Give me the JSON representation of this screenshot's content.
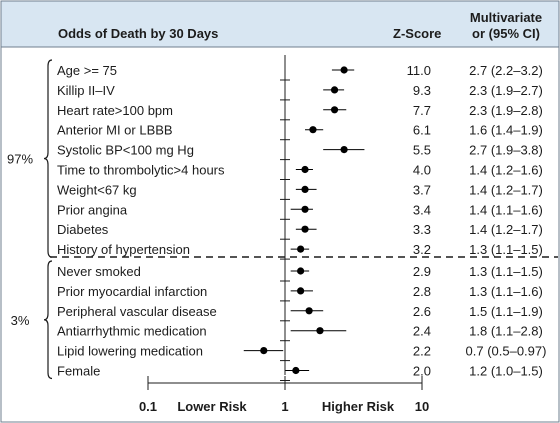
{
  "chart_data": {
    "type": "forest",
    "title": "Odds of Death by 30 Days",
    "zscore_header": "Z-Score",
    "or_header_line1": "Multivariate",
    "or_header_line2": "or (95% CI)",
    "axis": {
      "scale": "log",
      "xlim": [
        0.1,
        10
      ],
      "ticks": [
        "0.1",
        "1",
        "10"
      ],
      "lower_label": "Lower Risk",
      "higher_label": "Higher Risk"
    },
    "groups": [
      {
        "label": "97%",
        "rows": [
          0,
          9
        ]
      },
      {
        "label": "3%",
        "rows": [
          10,
          15
        ]
      }
    ],
    "rows": [
      {
        "label": "Age >= 75",
        "z": "11.0",
        "or_text": "2.7 (2.2–3.2)",
        "or": 2.7,
        "lo": 2.2,
        "hi": 3.2
      },
      {
        "label": "Killip II–IV",
        "z": "9.3",
        "or_text": "2.3 (1.9–2.7)",
        "or": 2.3,
        "lo": 1.9,
        "hi": 2.7
      },
      {
        "label": "Heart rate>100 bpm",
        "z": "7.7",
        "or_text": "2.3 (1.9–2.8)",
        "or": 2.3,
        "lo": 1.9,
        "hi": 2.8
      },
      {
        "label": "Anterior MI or LBBB",
        "z": "6.1",
        "or_text": "1.6 (1.4–1.9)",
        "or": 1.6,
        "lo": 1.4,
        "hi": 1.9
      },
      {
        "label": "Systolic BP<100 mg Hg",
        "z": "5.5",
        "or_text": "2.7 (1.9–3.8)",
        "or": 2.7,
        "lo": 1.9,
        "hi": 3.8
      },
      {
        "label": "Time to thrombolytic>4 hours",
        "z": "4.0",
        "or_text": "1.4 (1.2–1.6)",
        "or": 1.4,
        "lo": 1.2,
        "hi": 1.6
      },
      {
        "label": "Weight<67 kg",
        "z": "3.7",
        "or_text": "1.4 (1.2–1.7)",
        "or": 1.4,
        "lo": 1.2,
        "hi": 1.7
      },
      {
        "label": "Prior angina",
        "z": "3.4",
        "or_text": "1.4 (1.1–1.6)",
        "or": 1.4,
        "lo": 1.1,
        "hi": 1.6
      },
      {
        "label": "Diabetes",
        "z": "3.3",
        "or_text": "1.4 (1.2–1.7)",
        "or": 1.4,
        "lo": 1.2,
        "hi": 1.7
      },
      {
        "label": "History of hypertension",
        "z": "3.2",
        "or_text": "1.3 (1.1–1.5)",
        "or": 1.3,
        "lo": 1.1,
        "hi": 1.5
      },
      {
        "label": "Never smoked",
        "z": "2.9",
        "or_text": "1.3 (1.1–1.5)",
        "or": 1.3,
        "lo": 1.1,
        "hi": 1.5
      },
      {
        "label": "Prior myocardial infarction",
        "z": "2.8",
        "or_text": "1.3 (1.1–1.6)",
        "or": 1.3,
        "lo": 1.1,
        "hi": 1.6
      },
      {
        "label": "Peripheral vascular disease",
        "z": "2.6",
        "or_text": "1.5 (1.1–1.9)",
        "or": 1.5,
        "lo": 1.1,
        "hi": 1.9
      },
      {
        "label": "Antiarrhythmic medication",
        "z": "2.4",
        "or_text": "1.8 (1.1–2.8)",
        "or": 1.8,
        "lo": 1.1,
        "hi": 2.8
      },
      {
        "label": "Lipid lowering medication",
        "z": "2.2",
        "or_text": "0.7 (0.5–0.97)",
        "or": 0.7,
        "lo": 0.5,
        "hi": 0.97
      },
      {
        "label": "Female",
        "z": "2.0",
        "or_text": "1.2 (1.0–1.5)",
        "or": 1.2,
        "lo": 1.0,
        "hi": 1.5
      }
    ],
    "colors": {
      "header_bg": "#d8e6f2",
      "border": "#6f7f8f",
      "text": "#1c1c1c",
      "marker": "#000000"
    }
  }
}
